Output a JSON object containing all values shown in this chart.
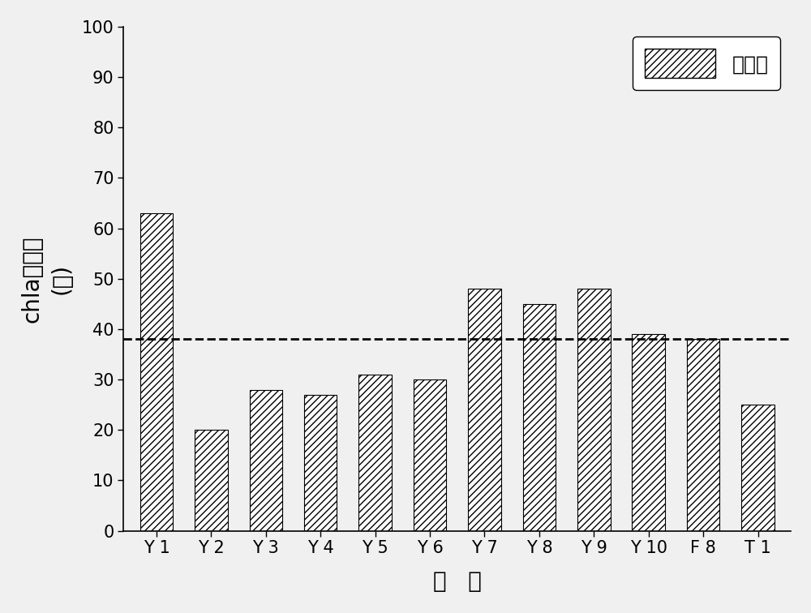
{
  "categories": [
    "Y 1",
    "Y 2",
    "Y 3",
    "Y 4",
    "Y 5",
    "Y 6",
    "Y 7",
    "Y 8",
    "Y 9",
    "Y 10",
    "F 8",
    "T 1"
  ],
  "values": [
    63,
    20,
    28,
    27,
    31,
    30,
    48,
    45,
    48,
    39,
    38,
    25
  ],
  "dashed_line_y": 38,
  "ylabel_top": "chla去除率",
  "ylabel_bottom": "(％)",
  "xlabel": "细   菌",
  "legend_label": "去除率",
  "ylim": [
    0,
    100
  ],
  "yticks": [
    0,
    10,
    20,
    30,
    40,
    50,
    60,
    70,
    80,
    90,
    100
  ],
  "bar_color": "#ffffff",
  "bar_edgecolor": "#000000",
  "hatch": "////",
  "dashed_line_color": "#000000",
  "axis_label_fontsize": 20,
  "tick_fontsize": 15,
  "legend_fontsize": 18,
  "background_color": "#f0f0f0"
}
